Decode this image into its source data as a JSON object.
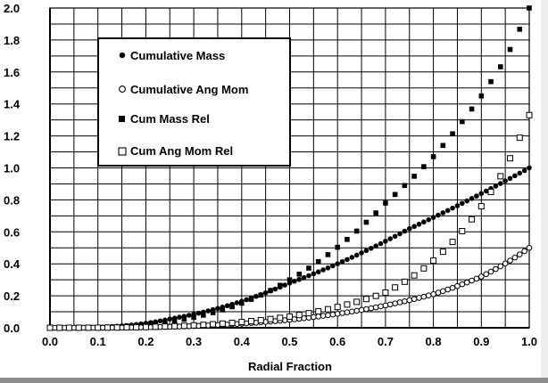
{
  "chart_data": {
    "type": "scatter",
    "title": "",
    "xlabel": "Radial Fraction",
    "ylabel": "",
    "xlim": [
      0,
      1
    ],
    "ylim": [
      0,
      2
    ],
    "x_ticks": [
      "0.0",
      "0.1",
      "0.2",
      "0.3",
      "0.4",
      "0.5",
      "0.6",
      "0.7",
      "0.8",
      "0.9",
      "1.0"
    ],
    "y_ticks": [
      "0.0",
      "0.2",
      "0.4",
      "0.6",
      "0.8",
      "1.0",
      "1.2",
      "1.4",
      "1.6",
      "1.8",
      "2.0"
    ],
    "grid": true,
    "grid_step": {
      "x": 0.05,
      "y": 0.1
    },
    "legend_position": "upper-left",
    "series": [
      {
        "name": "Cumulative Mass",
        "marker": "filled-circle",
        "color": "#000000",
        "x_range": [
          0,
          1
        ],
        "y_at_x": {
          "0.25": 0.055,
          "0.5": 0.28,
          "0.75": 0.62,
          "1.0": 1.0
        }
      },
      {
        "name": "Cumulative Ang Mom",
        "marker": "open-circle",
        "color": "#000000",
        "x_range": [
          0,
          1
        ],
        "y_at_x": {
          "0.5": 0.05,
          "0.7": 0.14,
          "0.8": 0.21,
          "0.9": 0.32,
          "1.0": 0.5
        }
      },
      {
        "name": "Cum Mass Rel",
        "marker": "filled-square",
        "color": "#000000",
        "x_range": [
          0,
          1
        ],
        "y_at_x": {
          "0.5": 0.3,
          "0.7": 0.78,
          "0.8": 1.07,
          "0.9": 1.45,
          "0.95": 1.68,
          "1.0": 2.0
        }
      },
      {
        "name": "Cum Ang Mom Rel",
        "marker": "open-square",
        "color": "#000000",
        "x_range": [
          0,
          1
        ],
        "y_at_x": {
          "0.5": 0.07,
          "0.7": 0.22,
          "0.8": 0.42,
          "0.9": 0.76,
          "0.95": 1.0,
          "1.0": 1.33
        }
      }
    ]
  }
}
